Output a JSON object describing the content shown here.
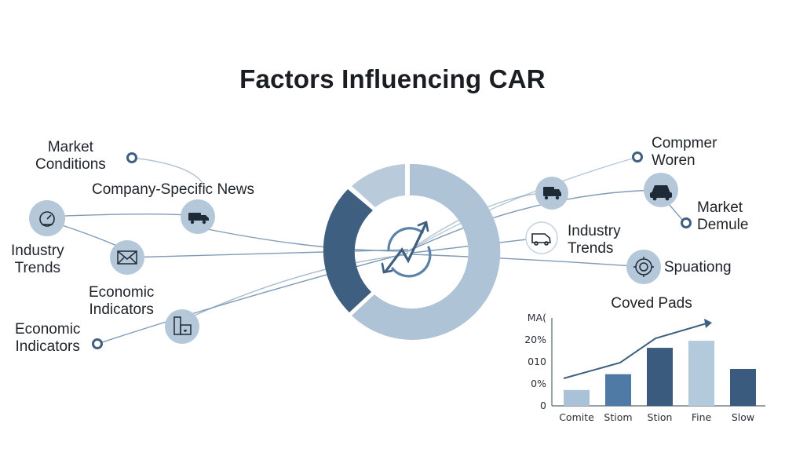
{
  "title": "Factors Influencing CAR",
  "left_labels": {
    "market_conditions": [
      "Market",
      "Conditions"
    ],
    "company_news": "Company-Specific News",
    "industry_trends": [
      "Industry",
      "Trends"
    ],
    "economic_indicators_1": [
      "Economic",
      "Indicators"
    ],
    "economic_indicators_2": [
      "Economic",
      "Indicators"
    ]
  },
  "right_labels": {
    "compmer_woren": [
      "Compmer",
      "Woren"
    ],
    "market_demule": [
      "Market",
      "Demule"
    ],
    "industry_trends": [
      "Industry",
      "Trends"
    ],
    "spuationg": "Spuationg"
  },
  "icons": {
    "left": [
      "clock-gauge-icon",
      "truck-icon",
      "envelope-icon",
      "buildings-icon"
    ],
    "right": [
      "truck-icon",
      "car-icon",
      "van-icon",
      "target-icon"
    ],
    "center": "growth-arrows-icon"
  },
  "colors": {
    "dark": "#3f5f80",
    "mid": "#5b82a8",
    "light": "#b9cbdb",
    "lighter": "#aec3d6",
    "node_fill": "#b5c8d9",
    "line": "#7f9bb6"
  },
  "chart_data": {
    "type": "bar",
    "title": "Coved Pads",
    "categories": [
      "Comite",
      "Stiom",
      "Stion",
      "Fine",
      "Slow"
    ],
    "values": [
      0.9,
      1.8,
      3.3,
      3.7,
      2.1
    ],
    "y_tick_labels": [
      "0",
      "0%",
      "010",
      "20%",
      "MA("
    ],
    "ylim": [
      0,
      5
    ],
    "trend_line": true,
    "bar_colors": [
      "#a9c2d8",
      "#4f7aa6",
      "#3a5a7e",
      "#b3c9dc",
      "#3a5a7e"
    ]
  }
}
